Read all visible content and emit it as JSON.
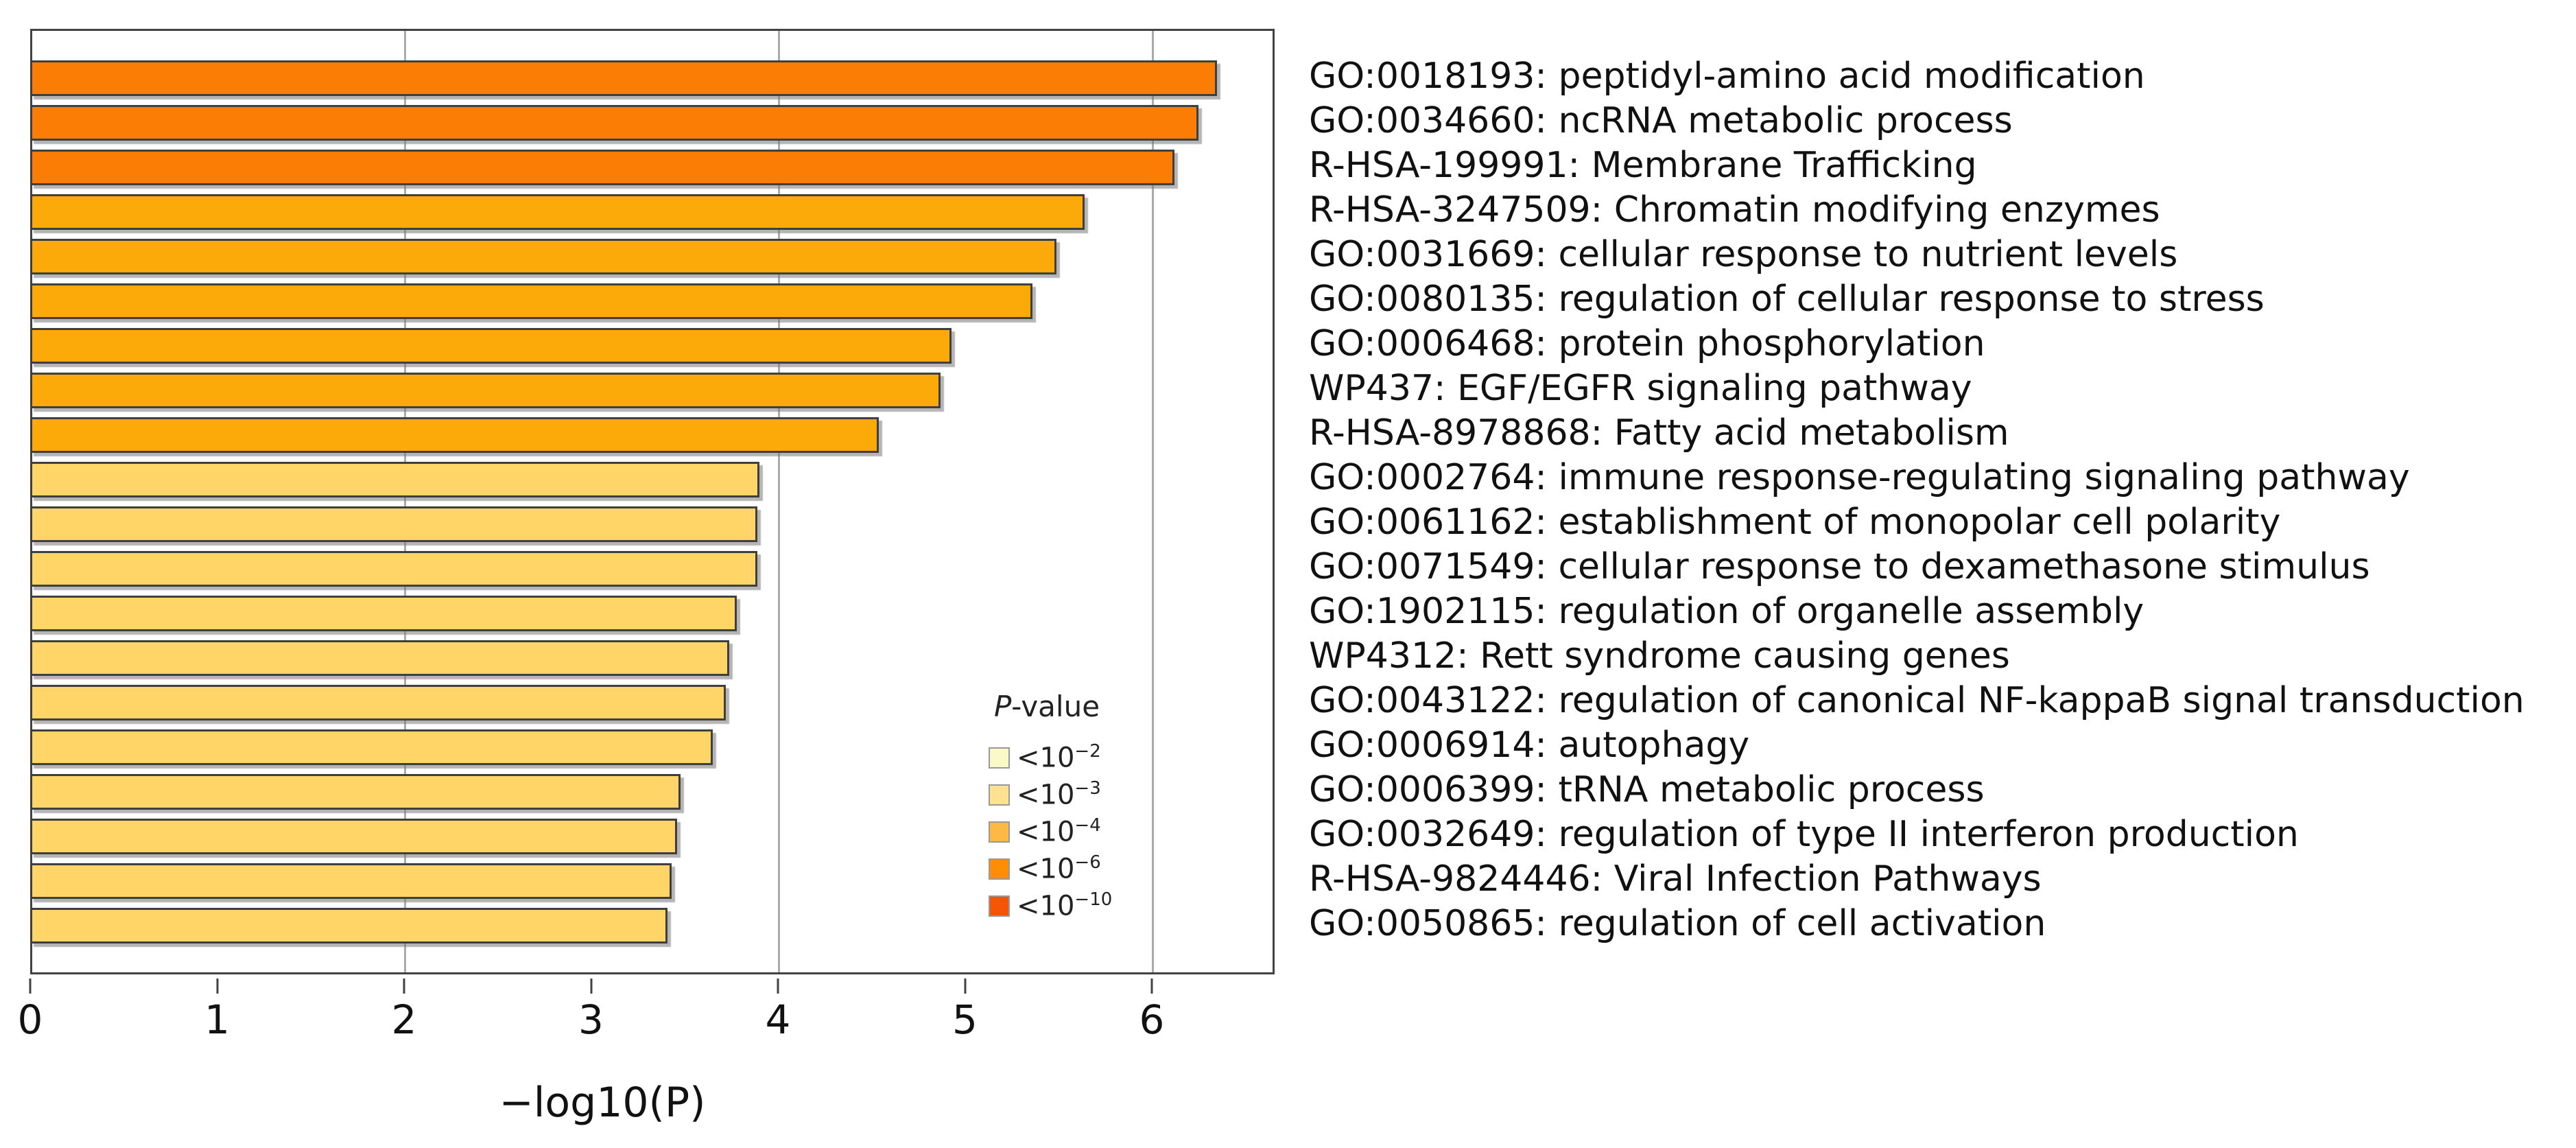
{
  "chart_data": {
    "type": "bar",
    "orientation": "horizontal",
    "title": "",
    "xlabel": "−log10(P)",
    "ylabel": "",
    "x_ticks": [
      "0",
      "1",
      "2",
      "3",
      "4",
      "5",
      "6"
    ],
    "x_tick_values": [
      0,
      1,
      2,
      3,
      4,
      5,
      6
    ],
    "xlim": [
      0,
      6.66
    ],
    "gridlines_at": [
      2,
      4,
      6
    ],
    "grid_on": true,
    "colors": {
      "axis_frame": "#424242",
      "gridline": "#ababab",
      "bar_border": "#3f3f3f",
      "background": "#ffffff",
      "bucket_high": "#fb7d05",
      "bucket_mid": "#fcaa0a",
      "bucket_low": "#fed566"
    },
    "bars": [
      {
        "label": "GO:0018193: peptidyl-amino acid modification",
        "value": 6.35,
        "color": "#fb7d05"
      },
      {
        "label": "GO:0034660: ncRNA metabolic process",
        "value": 6.25,
        "color": "#fb7d05"
      },
      {
        "label": "R-HSA-199991: Membrane Trafficking",
        "value": 6.12,
        "color": "#fb7d05"
      },
      {
        "label": "R-HSA-3247509: Chromatin modifying enzymes",
        "value": 5.64,
        "color": "#fcaa0a"
      },
      {
        "label": "GO:0031669: cellular response to nutrient levels",
        "value": 5.49,
        "color": "#fcaa0a"
      },
      {
        "label": "GO:0080135: regulation of cellular response to stress",
        "value": 5.36,
        "color": "#fcaa0a"
      },
      {
        "label": "GO:0006468: protein phosphorylation",
        "value": 4.93,
        "color": "#fcaa0a"
      },
      {
        "label": "WP437: EGF/EGFR signaling pathway",
        "value": 4.87,
        "color": "#fcaa0a"
      },
      {
        "label": "R-HSA-8978868: Fatty acid metabolism",
        "value": 4.54,
        "color": "#fcaa0a"
      },
      {
        "label": "GO:0002764: immune response-regulating signaling pathway",
        "value": 3.9,
        "color": "#fed566"
      },
      {
        "label": "GO:0061162: establishment of monopolar cell polarity",
        "value": 3.89,
        "color": "#fed566"
      },
      {
        "label": "GO:0071549: cellular response to dexamethasone stimulus",
        "value": 3.89,
        "color": "#fed566"
      },
      {
        "label": "GO:1902115: regulation of organelle assembly",
        "value": 3.78,
        "color": "#fed566"
      },
      {
        "label": "WP4312: Rett syndrome causing genes",
        "value": 3.74,
        "color": "#fed566"
      },
      {
        "label": "GO:0043122: regulation of canonical NF-kappaB signal transduction",
        "value": 3.72,
        "color": "#fed566"
      },
      {
        "label": "GO:0006914: autophagy",
        "value": 3.65,
        "color": "#fed566"
      },
      {
        "label": "GO:0006399: tRNA metabolic process",
        "value": 3.48,
        "color": "#fed566"
      },
      {
        "label": "GO:0032649: regulation of type II interferon production",
        "value": 3.46,
        "color": "#fed566"
      },
      {
        "label": "R-HSA-9824446: Viral Infection Pathways",
        "value": 3.43,
        "color": "#fed566"
      },
      {
        "label": "GO:0050865: regulation of cell activation",
        "value": 3.41,
        "color": "#fed566"
      }
    ],
    "legend": {
      "title_prefix": "P",
      "title_suffix": "-value",
      "position": "lower-right-inside",
      "swatch_border": "#999999",
      "entries": [
        {
          "text": "<10",
          "exponent": "−2",
          "color": "#fafac8"
        },
        {
          "text": "<10",
          "exponent": "−3",
          "color": "#fee292"
        },
        {
          "text": "<10",
          "exponent": "−4",
          "color": "#feb944"
        },
        {
          "text": "<10",
          "exponent": "−6",
          "color": "#ff8d06"
        },
        {
          "text": "<10",
          "exponent": "−10",
          "color": "#f85407"
        }
      ]
    }
  }
}
